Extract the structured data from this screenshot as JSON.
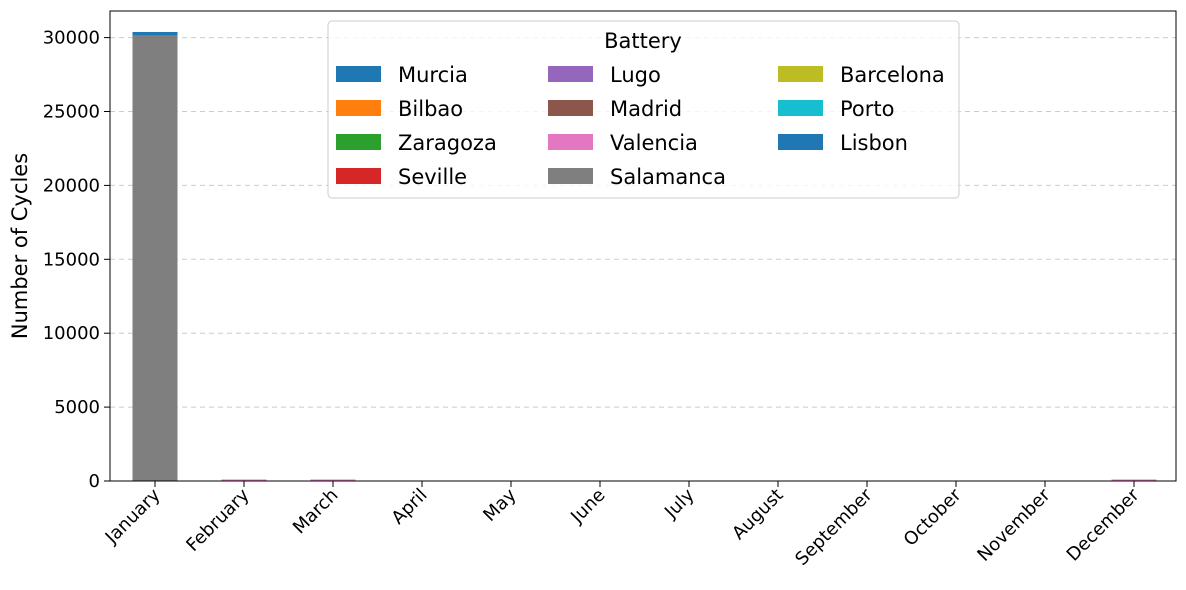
{
  "chart_data": {
    "type": "bar",
    "stacked": true,
    "categories": [
      "January",
      "February",
      "March",
      "April",
      "May",
      "June",
      "July",
      "August",
      "September",
      "October",
      "November",
      "December"
    ],
    "ylabel": "Number of Cycles",
    "xlabel": "",
    "ylim": [
      0,
      31800
    ],
    "yticks": [
      0,
      5000,
      10000,
      15000,
      20000,
      25000,
      30000
    ],
    "grid": "y-dashed",
    "legend": {
      "title": "Battery",
      "placement": "top-center",
      "columns": 3
    },
    "series": [
      {
        "name": "Murcia",
        "color": "#1f77b4",
        "values": [
          0,
          0,
          0,
          0,
          0,
          0,
          0,
          0,
          0,
          0,
          0,
          0
        ]
      },
      {
        "name": "Bilbao",
        "color": "#ff7f0e",
        "values": [
          0,
          0,
          0,
          0,
          0,
          0,
          0,
          0,
          0,
          0,
          0,
          0
        ]
      },
      {
        "name": "Zaragoza",
        "color": "#2ca02c",
        "values": [
          0,
          0,
          0,
          0,
          0,
          0,
          0,
          0,
          0,
          0,
          0,
          0
        ]
      },
      {
        "name": "Seville",
        "color": "#d62728",
        "values": [
          0,
          0,
          0,
          0,
          0,
          0,
          0,
          0,
          0,
          0,
          0,
          0
        ]
      },
      {
        "name": "Lugo",
        "color": "#9467bd",
        "values": [
          0,
          20,
          20,
          0,
          0,
          0,
          0,
          0,
          0,
          0,
          0,
          20
        ]
      },
      {
        "name": "Madrid",
        "color": "#8c564b",
        "values": [
          0,
          0,
          0,
          0,
          0,
          0,
          0,
          0,
          0,
          0,
          0,
          0
        ]
      },
      {
        "name": "Valencia",
        "color": "#e377c2",
        "values": [
          30,
          40,
          40,
          0,
          0,
          0,
          0,
          0,
          0,
          0,
          0,
          50
        ]
      },
      {
        "name": "Salamanca",
        "color": "#7f7f7f",
        "values": [
          30100,
          0,
          0,
          0,
          0,
          0,
          0,
          0,
          0,
          0,
          0,
          0
        ]
      },
      {
        "name": "Barcelona",
        "color": "#bcbd22",
        "values": [
          0,
          0,
          0,
          0,
          0,
          0,
          0,
          0,
          0,
          0,
          0,
          0
        ]
      },
      {
        "name": "Porto",
        "color": "#17becf",
        "values": [
          0,
          0,
          0,
          0,
          0,
          0,
          0,
          0,
          0,
          0,
          0,
          0
        ]
      },
      {
        "name": "Lisbon",
        "color": "#1f77b4",
        "values": [
          250,
          0,
          0,
          0,
          0,
          0,
          0,
          0,
          0,
          0,
          0,
          0
        ]
      }
    ]
  }
}
